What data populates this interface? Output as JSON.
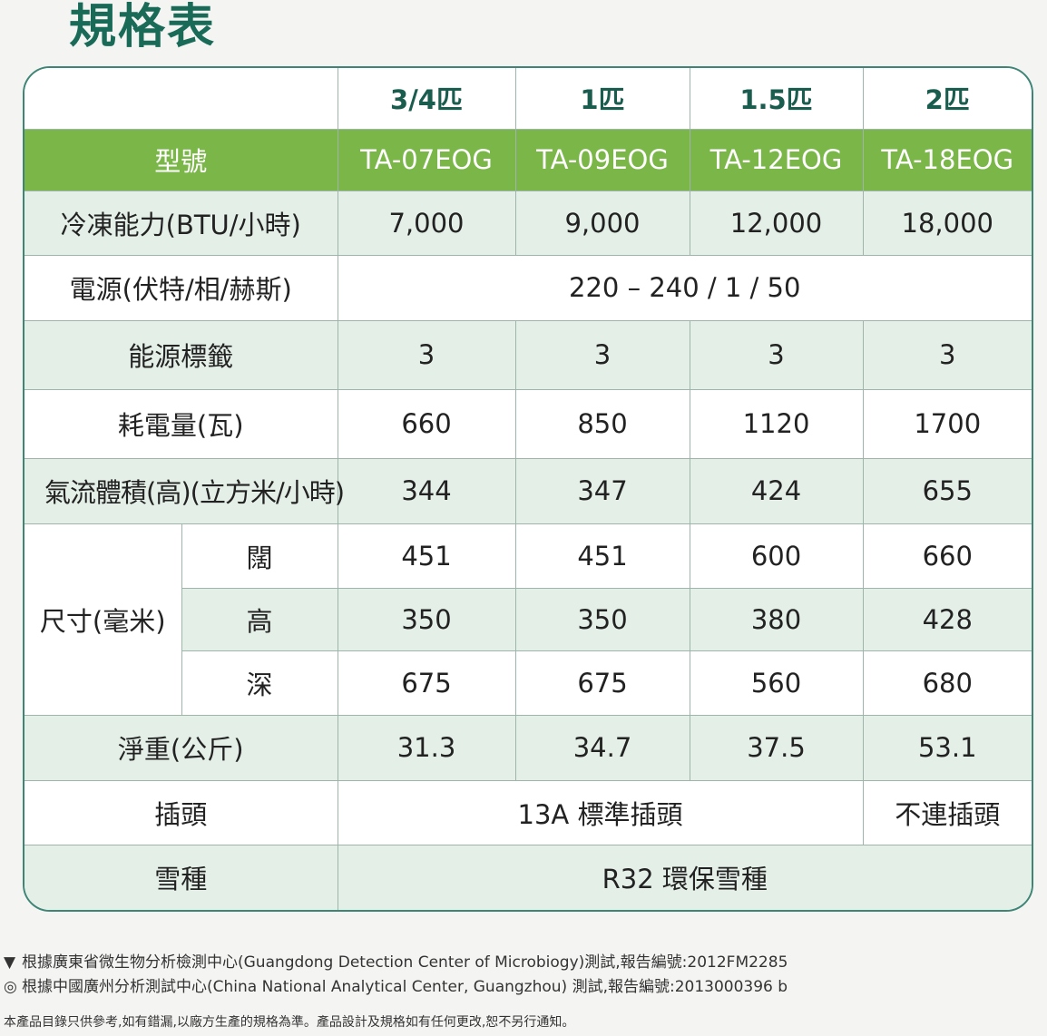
{
  "title": "規格表",
  "columns": [
    "3/4匹",
    "1匹",
    "1.5匹",
    "2匹"
  ],
  "model": {
    "label": "型號",
    "values": [
      "TA-07EOG",
      "TA-09EOG",
      "TA-12EOG",
      "TA-18EOG"
    ]
  },
  "cooling": {
    "label": "冷凍能力(BTU/小時)",
    "values": [
      "7,000",
      "9,000",
      "12,000",
      "18,000"
    ]
  },
  "power_supply": {
    "label": "電源(伏特/相/赫斯)",
    "value": "220 – 240 / 1 / 50"
  },
  "energy_label": {
    "label": "能源標籤",
    "values": [
      "3",
      "3",
      "3",
      "3"
    ]
  },
  "power_consumption": {
    "label": "耗電量(瓦)",
    "values": [
      "660",
      "850",
      "1120",
      "1700"
    ]
  },
  "airflow": {
    "label": "氣流體積(高)(立方米/小時)",
    "values": [
      "344",
      "347",
      "424",
      "655"
    ]
  },
  "dimensions": {
    "label": "尺寸(毫米)",
    "width": {
      "label": "闊",
      "values": [
        "451",
        "451",
        "600",
        "660"
      ]
    },
    "height": {
      "label": "高",
      "values": [
        "350",
        "350",
        "380",
        "428"
      ]
    },
    "depth": {
      "label": "深",
      "values": [
        "675",
        "675",
        "560",
        "680"
      ]
    }
  },
  "net_weight": {
    "label": "淨重(公斤)",
    "values": [
      "31.3",
      "34.7",
      "37.5",
      "53.1"
    ]
  },
  "plug": {
    "label": "插頭",
    "standard": "13A 標準插頭",
    "none": "不連插頭"
  },
  "refrigerant": {
    "label": "雪種",
    "value": "R32 環保雪種"
  },
  "footnotes": [
    {
      "mark": "▼",
      "text": "根據廣東省微生物分析檢測中心(Guangdong Detection Center of Microbiogy)測試,報告編號:2012FM2285"
    },
    {
      "mark": "◎",
      "text": "根據中國廣州分析測試中心(China National Analytical Center, Guangzhou) 測試,報告編號:2013000396 b"
    }
  ],
  "disclaimer": "本產品目錄只供參考,如有錯漏,以廠方生產的規格為準。產品設計及規格如有任何更改,恕不另行通知。",
  "colors": {
    "title": "#1a6a58",
    "model_row": "#7ab648",
    "tint_row": "#e4efe8",
    "border": "#3f8576"
  }
}
